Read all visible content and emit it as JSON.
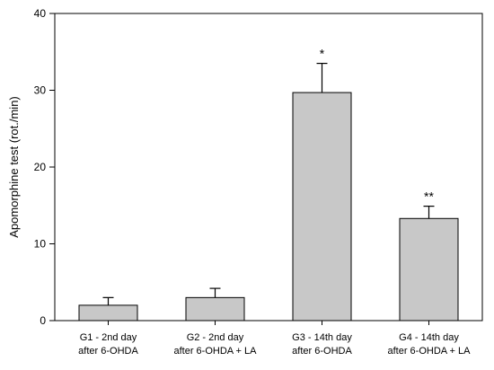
{
  "chart_data": {
    "type": "bar",
    "categories": [
      [
        "G1 - 2nd day",
        "after 6-OHDA"
      ],
      [
        "G2 - 2nd day",
        "after 6-OHDA + LA"
      ],
      [
        "G3 - 14th day",
        "after 6-OHDA"
      ],
      [
        "G4 - 14th day",
        "after 6-OHDA + LA"
      ]
    ],
    "values": [
      2.0,
      3.0,
      29.7,
      13.3
    ],
    "errors": [
      1.0,
      1.2,
      3.8,
      1.6
    ],
    "significance": [
      "",
      "",
      "*",
      "**"
    ],
    "ylabel": "Apomorphine test (rot./min)",
    "xlabel": "",
    "ylim": [
      0,
      40
    ],
    "yticks": [
      0,
      10,
      20,
      30,
      40
    ],
    "grid": false,
    "colors": {
      "bar_fill": "#c8c8c8",
      "bar_stroke": "#000000",
      "axis": "#000000"
    }
  }
}
